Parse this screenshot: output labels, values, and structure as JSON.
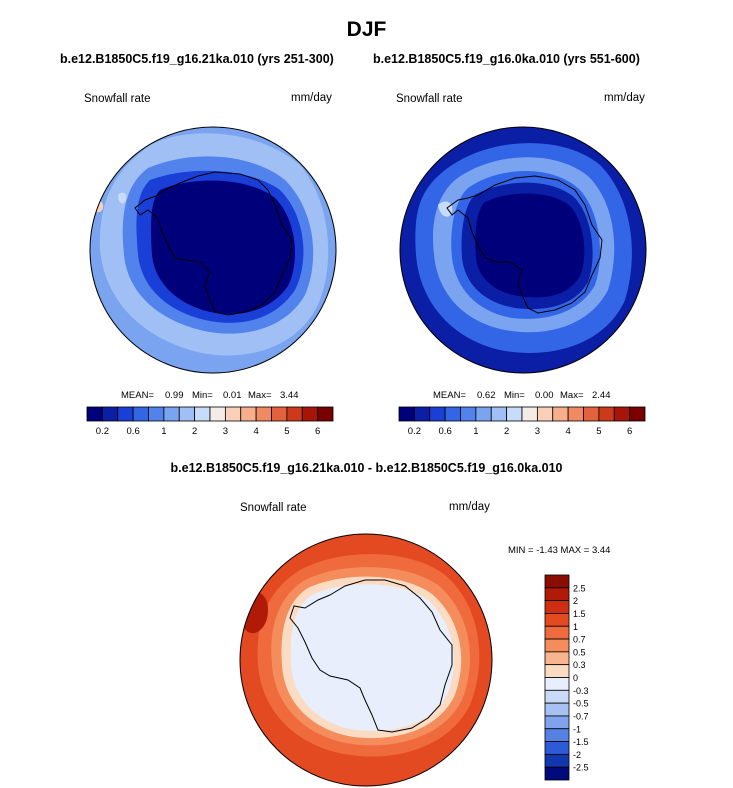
{
  "main_title": "DJF",
  "panels": [
    {
      "case_title": "b.e12.B1850C5.f19_g16.21ka.010 (yrs 251-300)",
      "variable": "Snowfall rate",
      "units": "mm/day",
      "stats": {
        "mean_label": "MEAN=",
        "mean": "0.99",
        "min_label": "Min=",
        "min": "0.01",
        "max_label": "Max=",
        "max": "3.44"
      }
    },
    {
      "case_title": "b.e12.B1850C5.f19_g16.0ka.010 (yrs 551-600)",
      "variable": "Snowfall rate",
      "units": "mm/day",
      "stats": {
        "mean_label": "MEAN=",
        "mean": "0.62",
        "min_label": "Min=",
        "min": "0.00",
        "max_label": "Max=",
        "max": "2.44"
      }
    }
  ],
  "diff_panel": {
    "title": "b.e12.B1850C5.f19_g16.21ka.010 - b.e12.B1850C5.f19_g16.0ka.010",
    "variable": "Snowfall rate",
    "units": "mm/day",
    "stats": "MIN =  -1.43 MAX =   3.44"
  },
  "chart_data": [
    {
      "type": "heatmap",
      "title": "b.e12.B1850C5.f19_g16.21ka.010 (yrs 251-300)",
      "variable": "Snowfall rate (mm/day)",
      "projection": "south polar stereographic",
      "levels": [
        0.2,
        0.4,
        0.6,
        0.8,
        1,
        1.5,
        2,
        2.5,
        3,
        3.5,
        4,
        4.5,
        5,
        5.5,
        6
      ],
      "colorbar_labels": [
        "0.2",
        "0.6",
        "1",
        "2",
        "3",
        "4",
        "5",
        "6"
      ],
      "colors": [
        "#00007a",
        "#0a1fa6",
        "#1a3fd6",
        "#3366e6",
        "#5283ec",
        "#7aa3f0",
        "#9fbff5",
        "#c7dbfa",
        "#f4ede6",
        "#fbd0b8",
        "#f7ae8a",
        "#f08a63",
        "#e3623d",
        "#cc3a1c",
        "#a81408",
        "#7a0000"
      ],
      "mean": 0.99,
      "min": 0.01,
      "max": 3.44
    },
    {
      "type": "heatmap",
      "title": "b.e12.B1850C5.f19_g16.0ka.010 (yrs 551-600)",
      "variable": "Snowfall rate (mm/day)",
      "projection": "south polar stereographic",
      "levels": [
        0.2,
        0.4,
        0.6,
        0.8,
        1,
        1.5,
        2,
        2.5,
        3,
        3.5,
        4,
        4.5,
        5,
        5.5,
        6
      ],
      "colorbar_labels": [
        "0.2",
        "0.6",
        "1",
        "2",
        "3",
        "4",
        "5",
        "6"
      ],
      "colors": [
        "#00007a",
        "#0a1fa6",
        "#1a3fd6",
        "#3366e6",
        "#5283ec",
        "#7aa3f0",
        "#9fbff5",
        "#c7dbfa",
        "#f4ede6",
        "#fbd0b8",
        "#f7ae8a",
        "#f08a63",
        "#e3623d",
        "#cc3a1c",
        "#a81408",
        "#7a0000"
      ],
      "mean": 0.62,
      "min": 0.0,
      "max": 2.44
    },
    {
      "type": "heatmap",
      "title": "b.e12.B1850C5.f19_g16.21ka.010 - b.e12.B1850C5.f19_g16.0ka.010",
      "variable": "Snowfall rate (mm/day)",
      "projection": "south polar stereographic",
      "levels": [
        2.5,
        2,
        1.5,
        1,
        0.7,
        0.5,
        0.3,
        0,
        -0.3,
        -0.5,
        -0.7,
        -1,
        -1.5,
        -2,
        -2.5
      ],
      "colorbar_labels": [
        "2.5",
        "2",
        "1.5",
        "1",
        "0.7",
        "0.5",
        "0.3",
        "0",
        "-0.3",
        "-0.5",
        "-0.7",
        "-1",
        "-1.5",
        "-2",
        "-2.5"
      ],
      "colors": [
        "#8a0d00",
        "#b01a06",
        "#d02e12",
        "#e34a22",
        "#ef6a3c",
        "#f48c5c",
        "#f8b58e",
        "#fbdcc3",
        "#e8eefb",
        "#c9daf7",
        "#a7c2f2",
        "#7fa3ec",
        "#5581e5",
        "#2d5bd8",
        "#1238b0",
        "#000a7a"
      ],
      "min": -1.43,
      "max": 3.44
    }
  ]
}
